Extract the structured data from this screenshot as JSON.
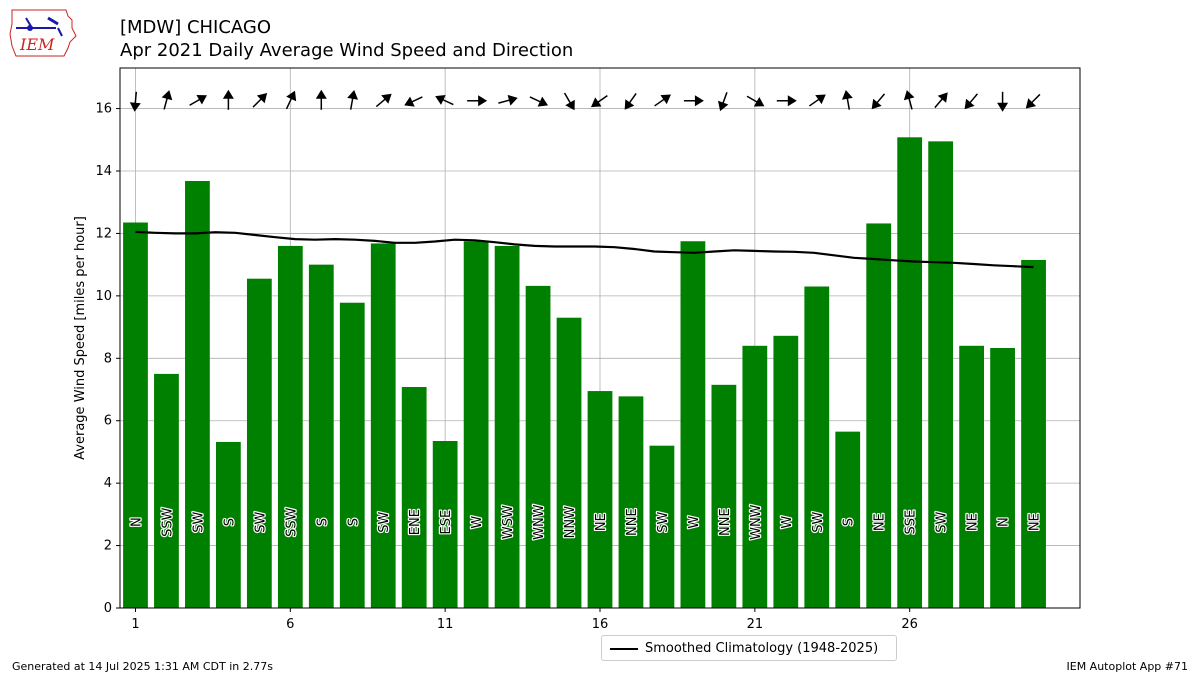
{
  "title": "[MDW] CHICAGO",
  "subtitle": "Apr 2021 Daily Average Wind Speed and Direction",
  "footer_left": "Generated at 14 Jul 2025 1:31 AM CDT in 2.77s",
  "footer_right": "IEM Autoplot App #71",
  "logo_text": "IEM",
  "legend_label": "Smoothed Climatology (1948-2025)",
  "colors": {
    "bar": "#008000",
    "climatology": "#000000",
    "grid": "#b0b0b0",
    "logo": "#cc2222"
  },
  "chart_data": {
    "type": "bar",
    "xlabel": "",
    "ylabel": "Average Wind Speed [miles per hour]",
    "xlim": [
      0.5,
      31.5
    ],
    "ylim": [
      0,
      17.3
    ],
    "xticks": [
      1,
      6,
      11,
      16,
      21,
      26
    ],
    "yticks": [
      0,
      2,
      4,
      6,
      8,
      10,
      12,
      14,
      16
    ],
    "grid": true,
    "legend_position": "bottom-center",
    "days": [
      1,
      2,
      3,
      4,
      5,
      6,
      7,
      8,
      9,
      10,
      11,
      12,
      13,
      14,
      15,
      16,
      17,
      18,
      19,
      20,
      21,
      22,
      23,
      24,
      25,
      26,
      27,
      28,
      29,
      30
    ],
    "values": [
      12.35,
      7.5,
      13.68,
      5.32,
      10.55,
      11.6,
      11.0,
      9.78,
      11.68,
      7.08,
      5.35,
      11.75,
      11.6,
      10.32,
      9.3,
      6.95,
      6.78,
      5.2,
      11.75,
      7.15,
      8.4,
      8.72,
      10.3,
      5.65,
      12.32,
      15.08,
      14.95,
      8.4,
      8.33,
      11.15
    ],
    "directions": [
      "N",
      "SSW",
      "SW",
      "S",
      "SW",
      "SSW",
      "S",
      "S",
      "SW",
      "ENE",
      "ESE",
      "W",
      "WSW",
      "WNW",
      "NNW",
      "NE",
      "NNE",
      "SW",
      "W",
      "NNE",
      "WNW",
      "W",
      "SW",
      "S",
      "NE",
      "SSE",
      "SW",
      "NE",
      "N",
      "NE"
    ],
    "arrow_bearing_deg": [
      185,
      15,
      60,
      0,
      45,
      25,
      0,
      10,
      50,
      245,
      295,
      90,
      75,
      115,
      150,
      235,
      215,
      55,
      90,
      200,
      120,
      90,
      55,
      350,
      220,
      345,
      40,
      220,
      180,
      225
    ],
    "climatology": {
      "name": "Smoothed Climatology (1948-2025)",
      "values": [
        12.05,
        12.02,
        12.0,
        12.0,
        12.04,
        12.02,
        11.95,
        11.88,
        11.82,
        11.8,
        11.82,
        11.8,
        11.76,
        11.7,
        11.7,
        11.74,
        11.8,
        11.78,
        11.72,
        11.65,
        11.6,
        11.58,
        11.58,
        11.58,
        11.56,
        11.5,
        11.42,
        11.4,
        11.38,
        11.42,
        11.46,
        11.44,
        11.42,
        11.41,
        11.38,
        11.3,
        11.22,
        11.18,
        11.14,
        11.1,
        11.08,
        11.06,
        11.02,
        10.98,
        10.95,
        10.92
      ]
    }
  }
}
